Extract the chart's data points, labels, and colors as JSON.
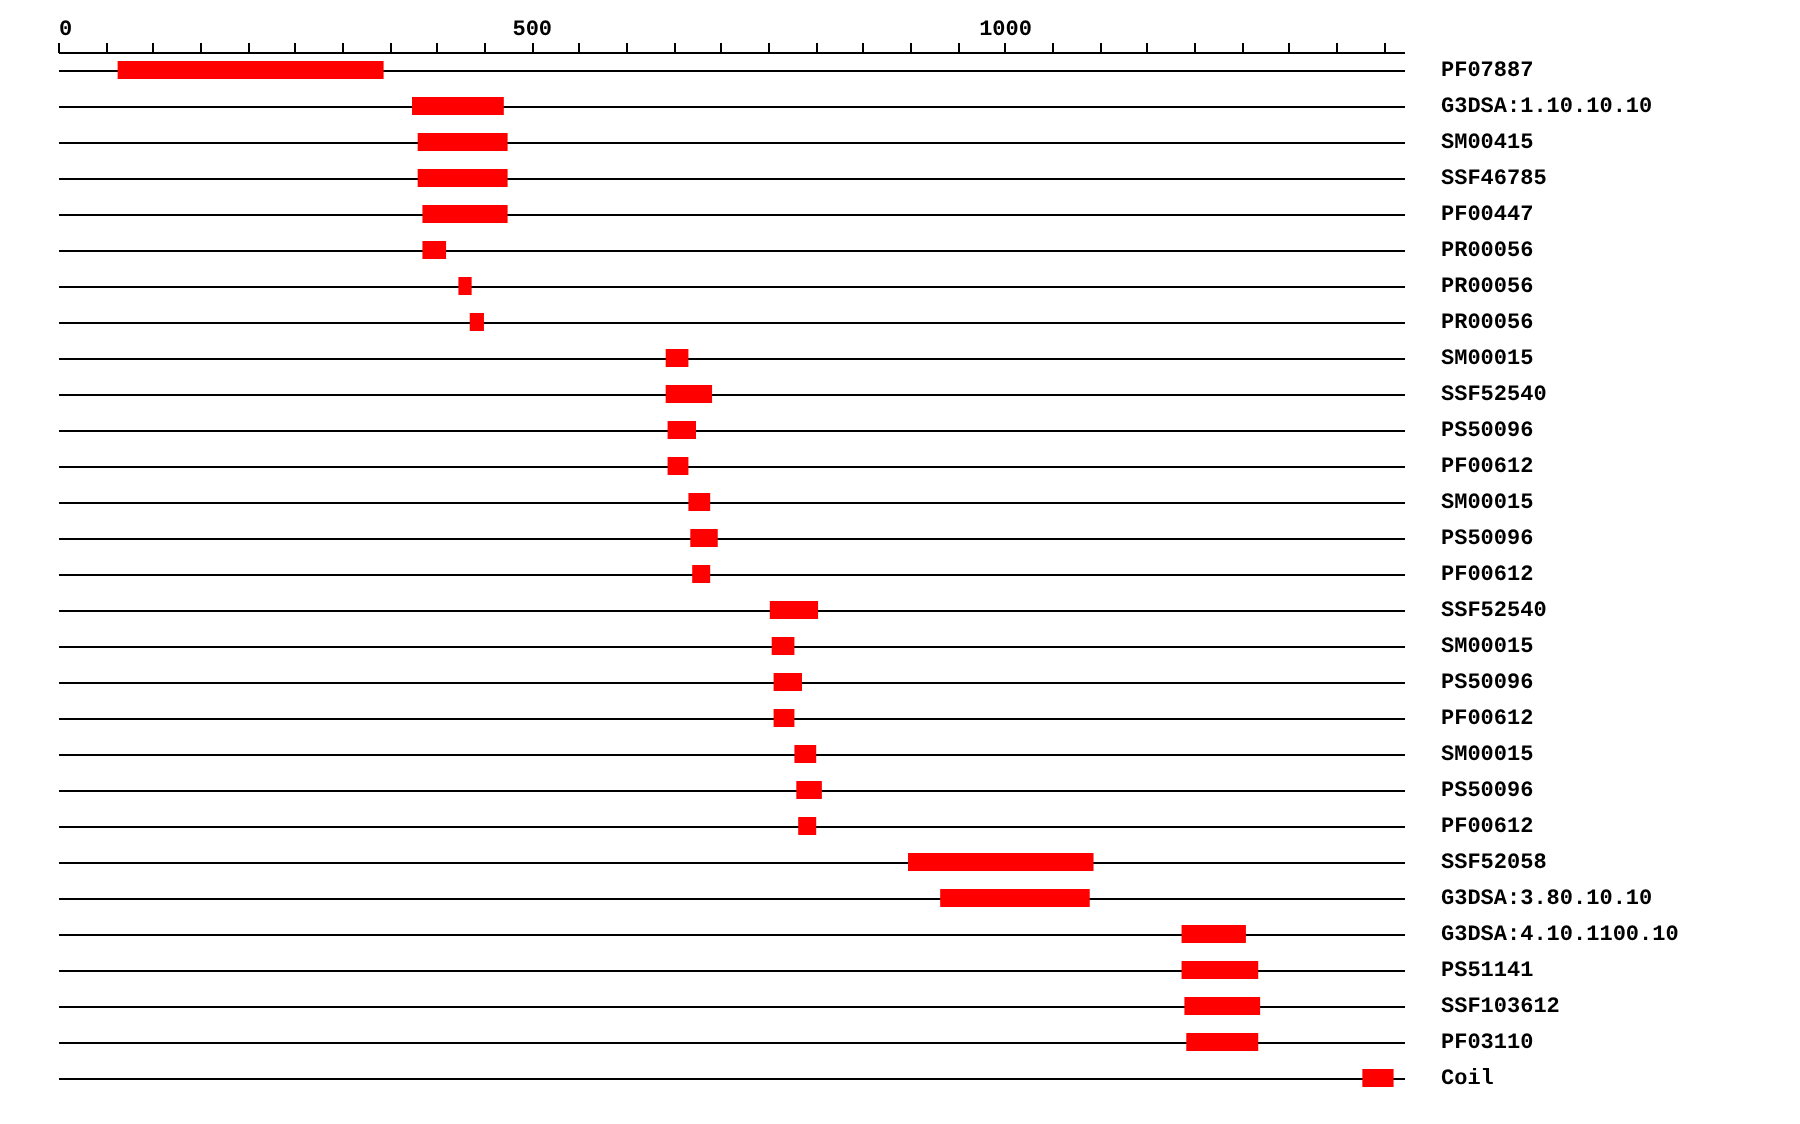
{
  "chart_data": {
    "type": "bar",
    "orientation": "horizontal",
    "categories": [
      "PF07887",
      "G3DSA:1.10.10.10",
      "SM00415",
      "SSF46785",
      "PF00447",
      "PR00056",
      "PR00056",
      "PR00056",
      "SM00015",
      "SSF52540",
      "PS50096",
      "PF00612",
      "SM00015",
      "PS50096",
      "PF00612",
      "SSF52540",
      "SM00015",
      "PS50096",
      "PF00612",
      "SM00015",
      "PS50096",
      "PF00612",
      "SSF52058",
      "G3DSA:3.80.10.10",
      "G3DSA:4.10.1100.10",
      "PS51141",
      "SSF103612",
      "PF03110",
      "Coil"
    ],
    "base": [
      63,
      374,
      380,
      380,
      385,
      385,
      423,
      435,
      642,
      642,
      644,
      644,
      666,
      668,
      670,
      752,
      754,
      756,
      756,
      778,
      780,
      782,
      898,
      932,
      1187,
      1187,
      1190,
      1192,
      1378
    ],
    "values": [
      281,
      97,
      95,
      95,
      90,
      25,
      14,
      15,
      24,
      49,
      30,
      22,
      23,
      29,
      19,
      51,
      24,
      30,
      22,
      23,
      27,
      19,
      196,
      158,
      68,
      81,
      80,
      76,
      33
    ],
    "color": "#ff0000",
    "xlim": [
      0,
      1422
    ],
    "xticks": [
      0,
      {
        "value": 50,
        "label": null
      },
      {
        "value": 100,
        "label": null
      },
      {
        "value": 150,
        "label": null
      },
      {
        "value": 200,
        "label": null
      },
      {
        "value": 250,
        "label": null
      },
      {
        "value": 300,
        "label": null
      },
      {
        "value": 350,
        "label": null
      },
      {
        "value": 400,
        "label": null
      },
      {
        "value": 450,
        "label": null
      },
      500,
      {
        "value": 550,
        "label": null
      },
      {
        "value": 600,
        "label": null
      },
      {
        "value": 650,
        "label": null
      },
      {
        "value": 700,
        "label": null
      },
      {
        "value": 750,
        "label": null
      },
      {
        "value": 800,
        "label": null
      },
      {
        "value": 850,
        "label": null
      },
      {
        "value": 900,
        "label": null
      },
      {
        "value": 950,
        "label": null
      },
      1000,
      {
        "value": 1050,
        "label": null
      },
      {
        "value": 1100,
        "label": null
      },
      {
        "value": 1150,
        "label": null
      },
      {
        "value": 1200,
        "label": null
      },
      {
        "value": 1250,
        "label": null
      },
      {
        "value": 1300,
        "label": null
      },
      {
        "value": 1350,
        "label": null
      },
      {
        "value": 1400,
        "label": null
      }
    ],
    "grid": "y"
  }
}
